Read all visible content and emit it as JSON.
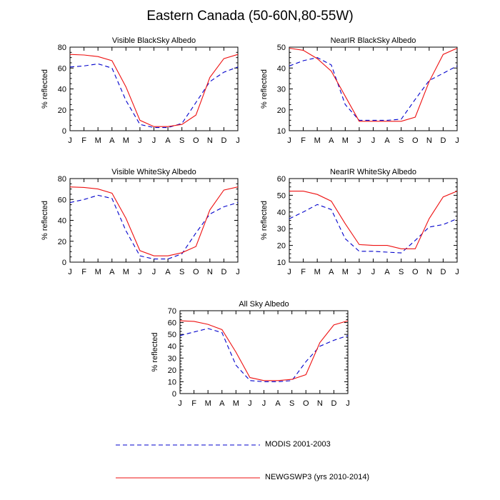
{
  "title": "Eastern Canada (50-60N,80-55W)",
  "colors": {
    "modis": "#0000cc",
    "newgswp": "#ee1111",
    "axis": "#000000"
  },
  "legend": {
    "modis_label": "MODIS 2001-2003",
    "newgswp_label": "NEWGSWP3 (yrs 2010-2014)"
  },
  "chart_data": [
    {
      "type": "line",
      "title": "Visible BlackSky Albedo",
      "ylabel": "% reflected",
      "categories": [
        "J",
        "F",
        "M",
        "A",
        "M",
        "J",
        "J",
        "A",
        "S",
        "O",
        "N",
        "D",
        "J"
      ],
      "ylim": [
        0,
        80
      ],
      "yticks": [
        0,
        20,
        40,
        60,
        80
      ],
      "series": [
        {
          "name": "MODIS 2001-2003",
          "style": "dashed",
          "values": [
            61,
            62,
            64,
            60,
            29,
            6,
            3,
            3,
            7,
            27,
            47,
            56,
            61
          ]
        },
        {
          "name": "NEWGSWP3 (yrs 2010-2014)",
          "style": "solid",
          "values": [
            73,
            72.5,
            71,
            67,
            42,
            10,
            4,
            4,
            6,
            15,
            51,
            69,
            73
          ]
        }
      ]
    },
    {
      "type": "line",
      "title": "NearIR BlackSky Albedo",
      "ylabel": "% reflected",
      "categories": [
        "J",
        "F",
        "M",
        "A",
        "M",
        "J",
        "J",
        "A",
        "S",
        "O",
        "N",
        "D",
        "J"
      ],
      "ylim": [
        10,
        50
      ],
      "yticks": [
        10,
        20,
        30,
        40,
        50
      ],
      "series": [
        {
          "name": "MODIS 2001-2003",
          "style": "dashed",
          "values": [
            41,
            43.5,
            45,
            41.5,
            22.5,
            15,
            15,
            15,
            15.5,
            25,
            34,
            37.5,
            41
          ]
        },
        {
          "name": "NEWGSWP3 (yrs 2010-2014)",
          "style": "solid",
          "values": [
            49.5,
            48.5,
            44.5,
            38.5,
            26.5,
            14.5,
            14.5,
            14.5,
            14.5,
            16.5,
            33.5,
            46.5,
            49.5
          ]
        }
      ]
    },
    {
      "type": "line",
      "title": "Visible WhiteSky Albedo",
      "ylabel": "% reflected",
      "categories": [
        "J",
        "F",
        "M",
        "A",
        "M",
        "J",
        "J",
        "A",
        "S",
        "O",
        "N",
        "D",
        "J"
      ],
      "ylim": [
        0,
        80
      ],
      "yticks": [
        0,
        20,
        40,
        60,
        80
      ],
      "series": [
        {
          "name": "MODIS 2001-2003",
          "style": "dashed",
          "values": [
            57,
            60,
            64,
            61,
            30,
            6,
            3,
            3,
            8,
            28,
            46,
            53,
            57
          ]
        },
        {
          "name": "NEWGSWP3 (yrs 2010-2014)",
          "style": "solid",
          "values": [
            72,
            71.5,
            70,
            66,
            42,
            11,
            6,
            6,
            9,
            15,
            50,
            69,
            72
          ]
        }
      ]
    },
    {
      "type": "line",
      "title": "NearIR WhiteSky Albedo",
      "ylabel": "% reflected",
      "categories": [
        "J",
        "F",
        "M",
        "A",
        "M",
        "J",
        "J",
        "A",
        "S",
        "O",
        "N",
        "D",
        "J"
      ],
      "ylim": [
        10,
        60
      ],
      "yticks": [
        10,
        20,
        30,
        40,
        50,
        60
      ],
      "series": [
        {
          "name": "MODIS 2001-2003",
          "style": "dashed",
          "values": [
            36,
            40,
            44.5,
            41.5,
            24,
            16.5,
            16.5,
            16,
            15.5,
            23,
            31,
            32.5,
            36
          ]
        },
        {
          "name": "NEWGSWP3 (yrs 2010-2014)",
          "style": "solid",
          "values": [
            52.5,
            52.5,
            50.5,
            46.5,
            33,
            20.5,
            20,
            20,
            18,
            18,
            36,
            49,
            52.5
          ]
        }
      ]
    },
    {
      "type": "line",
      "title": "All Sky Albedo",
      "ylabel": "% reflected",
      "categories": [
        "J",
        "F",
        "M",
        "A",
        "M",
        "J",
        "J",
        "A",
        "S",
        "O",
        "N",
        "D",
        "J"
      ],
      "ylim": [
        0,
        70
      ],
      "yticks": [
        0,
        10,
        20,
        30,
        40,
        50,
        60,
        70
      ],
      "series": [
        {
          "name": "MODIS 2001-2003",
          "style": "dashed",
          "values": [
            49,
            52,
            55,
            51.5,
            24,
            11,
            10,
            10,
            11,
            27,
            40,
            45,
            49
          ]
        },
        {
          "name": "NEWGSWP3 (yrs 2010-2014)",
          "style": "solid",
          "values": [
            61.5,
            61,
            58.5,
            54,
            35,
            13.5,
            11,
            11,
            12,
            16,
            43,
            58,
            61.5
          ]
        }
      ]
    }
  ]
}
